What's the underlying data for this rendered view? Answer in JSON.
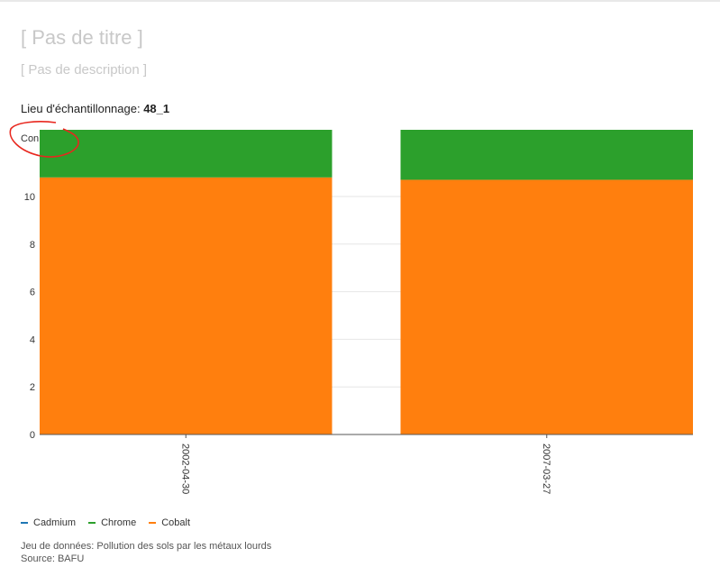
{
  "header": {
    "title": "[ Pas de titre ]",
    "description": "[ Pas de description ]"
  },
  "filter": {
    "label": "Lieu d'échantillonnage: ",
    "value": "48_1"
  },
  "colors": {
    "Cadmium": "#1f77b4",
    "Chrome": "#2ca02c",
    "Cobalt": "#ff7f0e",
    "annotation": "#e8271e"
  },
  "chart_data": {
    "type": "bar",
    "stacked": true,
    "ylabel": "Con",
    "xlabel": "",
    "categories": [
      "2002-04-30",
      "2007-03-27"
    ],
    "series": [
      {
        "name": "Cadmium",
        "values": [
          0,
          0
        ]
      },
      {
        "name": "Cobalt",
        "values": [
          10.8,
          10.7
        ]
      },
      {
        "name": "Chrome",
        "values": [
          2.0,
          2.1
        ]
      }
    ],
    "yticks": [
      0,
      2,
      4,
      6,
      8,
      10
    ],
    "ylim": [
      0,
      12.8
    ],
    "grid": true,
    "legend": "bottom-left",
    "annotation": "red hand-drawn circle around the y-axis label"
  },
  "footer": {
    "dataset": "Jeu de données: Pollution des sols par les métaux lourds",
    "source": "Source: BAFU"
  }
}
